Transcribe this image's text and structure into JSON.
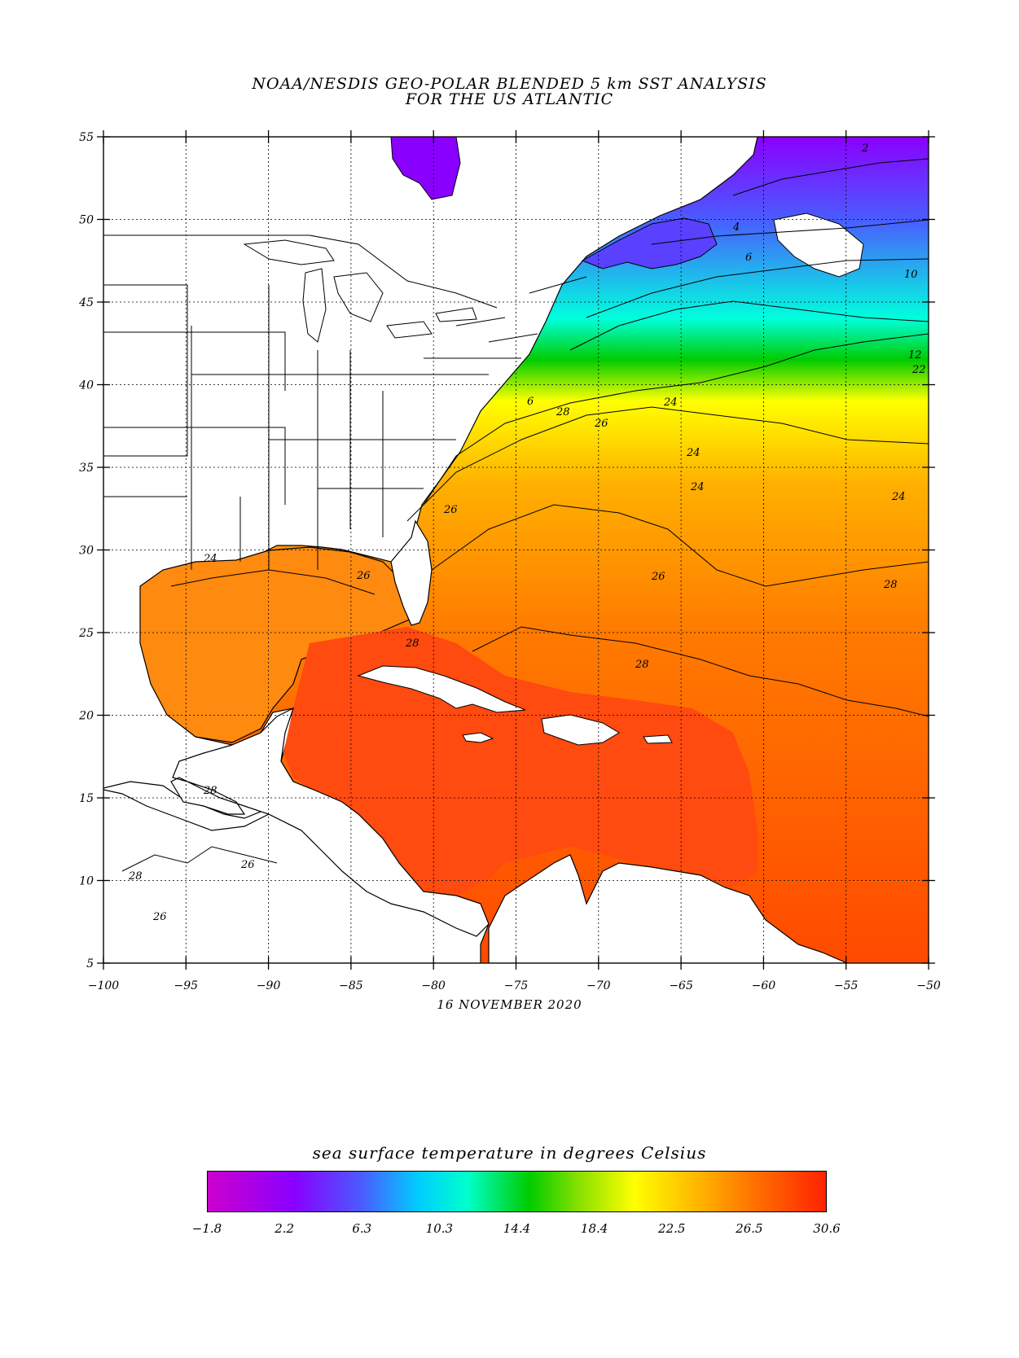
{
  "title_line1": "NOAA/NESDIS GEO-POLAR BLENDED 5 km SST ANALYSIS",
  "title_line2": "FOR THE US ATLANTIC",
  "date": "16 NOVEMBER 2020",
  "lon_ticks": [
    "-100",
    "-95",
    "-90",
    "-85",
    "-80",
    "-75",
    "-70",
    "-65",
    "-60",
    "-55",
    "-50"
  ],
  "lat_ticks": [
    "55",
    "50",
    "45",
    "40",
    "35",
    "30",
    "25",
    "20",
    "15",
    "10",
    "5"
  ],
  "contour_labels": [
    "2",
    "4",
    "6",
    "10",
    "6",
    "28",
    "26",
    "24",
    "24",
    "24",
    "24",
    "26",
    "26",
    "28",
    "28",
    "28",
    "28",
    "26",
    "26",
    "28",
    "26",
    "24",
    "12",
    "22"
  ],
  "colorbar": {
    "title": "sea surface temperature in degrees Celsius",
    "ticks": [
      "-1.8",
      "2.2",
      "6.3",
      "10.3",
      "14.4",
      "18.4",
      "22.5",
      "26.5",
      "30.6"
    ],
    "colors": [
      "#cc00cc",
      "#8a00ff",
      "#4a5cff",
      "#00ccff",
      "#00ffcc",
      "#00cc00",
      "#88e000",
      "#ffff00",
      "#ffb000",
      "#ff6600",
      "#ff2200"
    ]
  }
}
